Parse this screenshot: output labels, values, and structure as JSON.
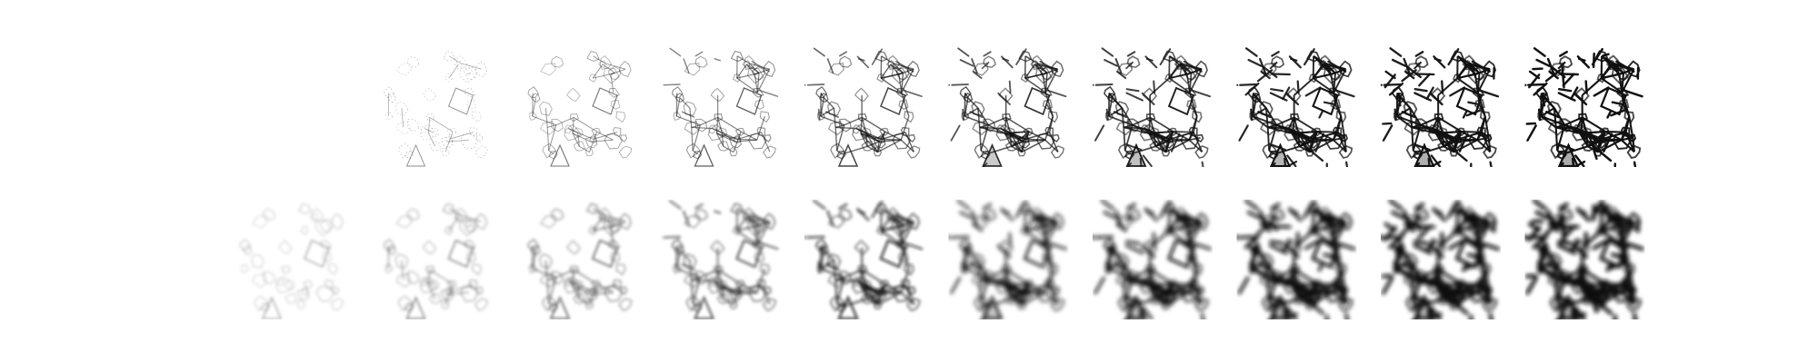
{
  "figure": {
    "rows": 2,
    "columns": 10,
    "row_labels": [
      "",
      ""
    ],
    "panel_labels": [],
    "description_visible_text": ""
  },
  "grid": {
    "top_row_first_panel_blank": true,
    "bottom_row_style": "blurred",
    "top_row_style": "sharp-edges"
  },
  "progression": {
    "steps": [
      0.0,
      0.12,
      0.24,
      0.36,
      0.5,
      0.62,
      0.74,
      0.86,
      0.94,
      1.0
    ]
  },
  "colors": {
    "background": "#ffffff",
    "ink": "#111111",
    "faint_ink": "#9a9a9a"
  }
}
